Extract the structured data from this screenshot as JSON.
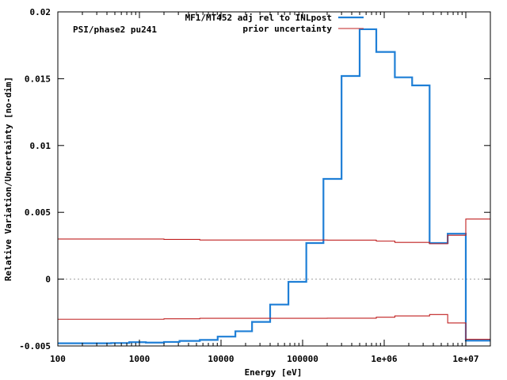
{
  "chart_data": {
    "type": "line",
    "step": true,
    "title": "",
    "annotation": "PSI/phase2 pu241",
    "xlabel": "Energy [eV]",
    "ylabel": "Relative Variation/Uncertainty [no-dim]",
    "xscale": "log",
    "xlim": [
      100,
      20000000
    ],
    "ylim": [
      -0.005,
      0.02
    ],
    "x_ticks": [
      {
        "value": 100,
        "label": "100"
      },
      {
        "value": 1000,
        "label": "1000"
      },
      {
        "value": 10000,
        "label": "10000"
      },
      {
        "value": 100000,
        "label": "100000"
      },
      {
        "value": 1000000,
        "label": "1e+06"
      },
      {
        "value": 10000000,
        "label": "1e+07"
      }
    ],
    "y_ticks": [
      {
        "value": -0.005,
        "label": "-0.005"
      },
      {
        "value": 0,
        "label": "0"
      },
      {
        "value": 0.005,
        "label": "0.005"
      },
      {
        "value": 0.01,
        "label": "0.01"
      },
      {
        "value": 0.015,
        "label": "0.015"
      },
      {
        "value": 0.02,
        "label": "0.02"
      }
    ],
    "zero_line": true,
    "grid": false,
    "legend_position": "top-right",
    "series": [
      {
        "name": "MF1/MT452 adj rel to INLpost",
        "color": "#1f7fd6",
        "edges": [
          100,
          450,
          750,
          1200,
          2000,
          3100,
          5500,
          9100,
          15000,
          24000,
          40000,
          67000,
          111000,
          180000,
          300000,
          500000,
          800000,
          1350000,
          2200000,
          3600000,
          6000000,
          10000000,
          20000000
        ],
        "values": [
          -0.0048,
          -0.00478,
          -0.00472,
          -0.00475,
          -0.0047,
          -0.00462,
          -0.00455,
          -0.0043,
          -0.0039,
          -0.0032,
          -0.0019,
          -0.0002,
          0.0027,
          0.0075,
          0.0152,
          0.0187,
          0.017,
          0.0151,
          0.0145,
          0.0027,
          0.0034,
          -0.0046
        ]
      },
      {
        "name": "prior uncertainty",
        "color": "#c02020",
        "edges": [
          100,
          2000,
          5500,
          200000,
          800000,
          1350000,
          3600000,
          6000000,
          10000000,
          20000000
        ],
        "values": [
          0.003,
          0.00297,
          0.00293,
          0.00292,
          0.00285,
          0.00275,
          0.00265,
          0.00328,
          0.0045
        ]
      },
      {
        "name": "",
        "color": "#c02020",
        "edges": [
          100,
          2000,
          5500,
          200000,
          800000,
          1350000,
          3600000,
          6000000,
          10000000,
          20000000
        ],
        "values": [
          -0.003,
          -0.00297,
          -0.00293,
          -0.00292,
          -0.00285,
          -0.00275,
          -0.00265,
          -0.00328,
          -0.0045
        ]
      }
    ]
  }
}
